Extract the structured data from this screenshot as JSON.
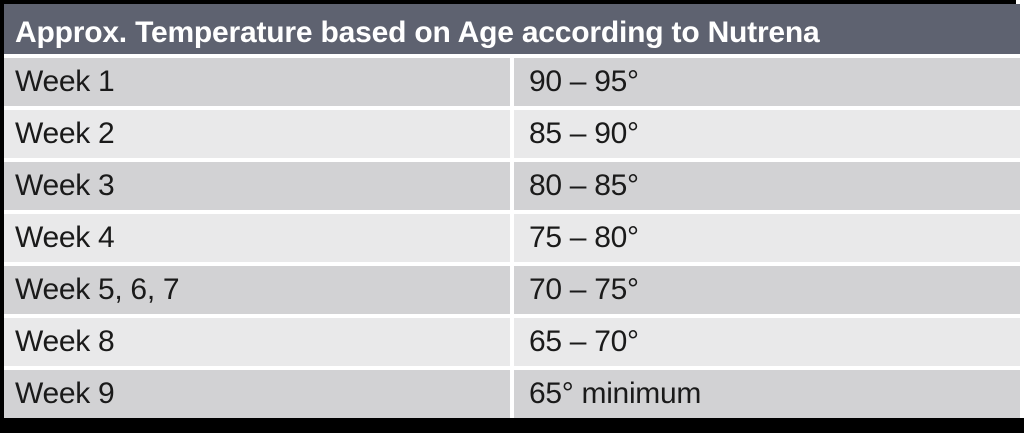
{
  "table": {
    "title": "Approx. Temperature based on Age according to Nutrena",
    "rows": [
      {
        "label": "Week 1",
        "value": "90 – 95°"
      },
      {
        "label": "Week 2",
        "value": "85 – 90°"
      },
      {
        "label": "Week 3",
        "value": "80 – 85°"
      },
      {
        "label": "Week 4",
        "value": "75 – 80°"
      },
      {
        "label": "Week 5, 6, 7",
        "value": "70 – 75°"
      },
      {
        "label": "Week 8",
        "value": "65 – 70°"
      },
      {
        "label": "Week 9",
        "value": "65° minimum"
      }
    ]
  },
  "colors": {
    "header_bg": "#5e6270",
    "header_text": "#ffffff",
    "row_dark": "#d2d2d4",
    "row_light": "#e9e9ea",
    "body_text": "#1a1a1a",
    "frame": "#000000"
  }
}
